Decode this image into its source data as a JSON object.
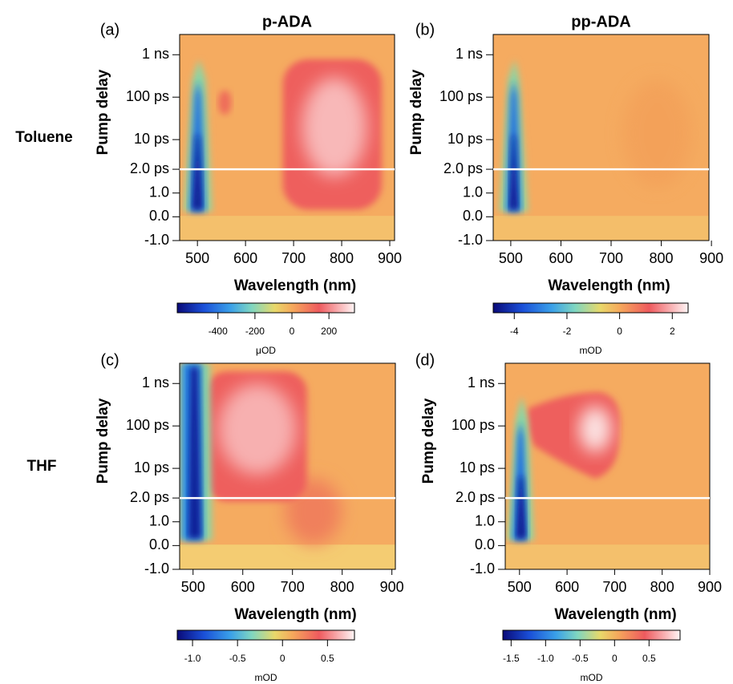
{
  "row_labels": [
    "Toluene",
    "THF"
  ],
  "chart_data": [
    {
      "type": "heatmap",
      "panel_label": "(a)",
      "title": "p-ADA",
      "xlabel": "Wavelength (nm)",
      "ylabel": "Pump delay",
      "xlim": [
        463,
        910
      ],
      "xticks": [
        500,
        600,
        700,
        800,
        900
      ],
      "ylim": [
        -1,
        3000
      ],
      "y_scale": "linear-log",
      "y_break": 2,
      "yticks": [
        {
          "value": -1,
          "label": "-1.0"
        },
        {
          "value": 0,
          "label": "0.0"
        },
        {
          "value": 1,
          "label": "1.0"
        },
        {
          "value": 2,
          "label": "2.0 ps"
        },
        {
          "value": 10,
          "label": "10 ps"
        },
        {
          "value": 100,
          "label": "100 ps"
        },
        {
          "value": 1000,
          "label": "1 ns"
        }
      ],
      "colorbar": {
        "lim": [
          -620,
          338
        ],
        "ticks": [
          -400,
          -200,
          0,
          200
        ],
        "label": "μOD"
      }
    },
    {
      "type": "heatmap",
      "panel_label": "(b)",
      "title": "pp-ADA",
      "xlabel": "Wavelength (nm)",
      "ylabel": "Pump delay",
      "xlim": [
        465,
        895
      ],
      "xticks": [
        500,
        600,
        700,
        800,
        900
      ],
      "ylim": [
        -1,
        3000
      ],
      "y_scale": "linear-log",
      "y_break": 2,
      "yticks": [
        {
          "value": -1,
          "label": "-1.0"
        },
        {
          "value": 0,
          "label": "0.0"
        },
        {
          "value": 1,
          "label": "1.0"
        },
        {
          "value": 2,
          "label": "2.0 ps"
        },
        {
          "value": 10,
          "label": "10 ps"
        },
        {
          "value": 100,
          "label": "100 ps"
        },
        {
          "value": 1000,
          "label": "1 ns"
        }
      ],
      "colorbar": {
        "lim": [
          -4.8,
          2.6
        ],
        "ticks": [
          -4,
          -2,
          0,
          2
        ],
        "label": "mOD"
      }
    },
    {
      "type": "heatmap",
      "panel_label": "(c)",
      "xlabel": "Wavelength (nm)",
      "ylabel": "Pump delay",
      "xlim": [
        473,
        907
      ],
      "xticks": [
        500,
        600,
        700,
        800,
        900
      ],
      "ylim": [
        -1,
        3000
      ],
      "y_scale": "linear-log",
      "y_break": 2,
      "yticks": [
        {
          "value": -1,
          "label": "-1.0"
        },
        {
          "value": 0,
          "label": "0.0"
        },
        {
          "value": 1,
          "label": "1.0"
        },
        {
          "value": 2,
          "label": "2.0 ps"
        },
        {
          "value": 10,
          "label": "10 ps"
        },
        {
          "value": 100,
          "label": "100 ps"
        },
        {
          "value": 1000,
          "label": "1 ns"
        }
      ],
      "colorbar": {
        "lim": [
          -1.17,
          0.8
        ],
        "ticks": [
          {
            "value": -1,
            "label": "-1.0"
          },
          -0.5,
          0,
          0.5
        ],
        "label": "mOD"
      }
    },
    {
      "type": "heatmap",
      "panel_label": "(d)",
      "xlabel": "Wavelength (nm)",
      "ylabel": "Pump delay",
      "xlim": [
        470,
        900
      ],
      "xticks": [
        500,
        600,
        700,
        800,
        900
      ],
      "ylim": [
        -1,
        3000
      ],
      "y_scale": "linear-log",
      "y_break": 2,
      "yticks": [
        {
          "value": -1,
          "label": "-1.0"
        },
        {
          "value": 0,
          "label": "0.0"
        },
        {
          "value": 1,
          "label": "1.0"
        },
        {
          "value": 2,
          "label": "2.0 ps"
        },
        {
          "value": 10,
          "label": "10 ps"
        },
        {
          "value": 100,
          "label": "100 ps"
        },
        {
          "value": 1000,
          "label": "1 ns"
        }
      ],
      "colorbar": {
        "lim": [
          -1.62,
          0.95
        ],
        "ticks": [
          -1.5,
          {
            "value": -1,
            "label": "-1.0"
          },
          -0.5,
          0,
          0.5
        ],
        "label": "mOD"
      }
    }
  ]
}
